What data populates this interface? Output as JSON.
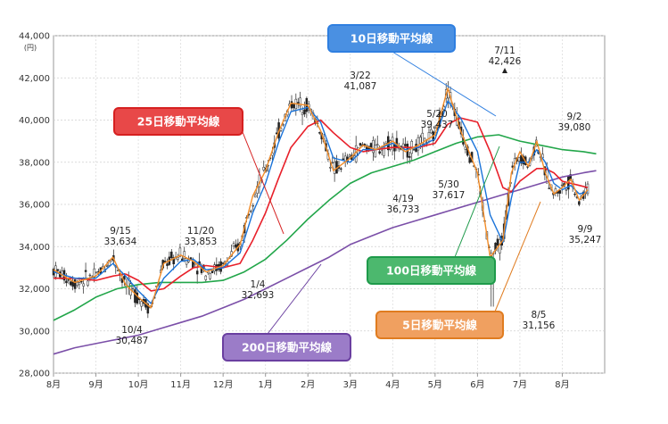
{
  "chart_data": {
    "type": "line",
    "title": "",
    "ylabel_unit": "(円)",
    "ylim": [
      28000,
      44000
    ],
    "y_ticks": [
      "28,000",
      "30,000",
      "32,000",
      "34,000",
      "36,000",
      "38,000",
      "40,000",
      "42,000",
      "44,000"
    ],
    "y_tick_values": [
      28000,
      30000,
      32000,
      34000,
      36000,
      38000,
      40000,
      42000,
      44000
    ],
    "x_labels": [
      "8月",
      "9月",
      "10月",
      "11月",
      "12月",
      "1月",
      "2月",
      "3月",
      "4月",
      "5月",
      "6月",
      "7月",
      "8月"
    ],
    "grid": true,
    "series": [
      {
        "name": "5日移動平均線",
        "color": "#f28c28",
        "x": [
          0,
          0.5,
          1,
          1.4,
          1.7,
          2,
          2.3,
          2.6,
          3,
          3.3,
          3.6,
          4,
          4.4,
          4.7,
          5,
          5.3,
          5.6,
          6,
          6.3,
          6.6,
          7,
          7.3,
          7.6,
          8,
          8.3,
          8.6,
          9,
          9.3,
          9.6,
          10,
          10.3,
          10.6,
          10.8,
          11,
          11.2,
          11.4,
          11.6,
          11.8,
          12,
          12.2,
          12.4,
          12.6
        ],
        "values": [
          32900,
          32300,
          32600,
          33500,
          32200,
          31600,
          31100,
          33200,
          33600,
          33300,
          32800,
          33100,
          34100,
          36400,
          37600,
          39400,
          40800,
          40700,
          39500,
          37600,
          38200,
          38800,
          38600,
          39000,
          38500,
          38800,
          39300,
          41500,
          39500,
          37500,
          33500,
          34300,
          37500,
          38500,
          37800,
          39000,
          37500,
          36500,
          36800,
          37200,
          36200,
          36700
        ]
      },
      {
        "name": "10日移動平均線",
        "color": "#1a73d9",
        "x": [
          0,
          0.5,
          1,
          1.4,
          1.7,
          2,
          2.3,
          2.6,
          3,
          3.3,
          3.6,
          4,
          4.4,
          4.7,
          5,
          5.3,
          5.6,
          6,
          6.3,
          6.6,
          7,
          7.3,
          7.6,
          8,
          8.3,
          8.6,
          9,
          9.3,
          9.6,
          10,
          10.3,
          10.6,
          10.8,
          11,
          11.2,
          11.4,
          11.6,
          11.8,
          12,
          12.2,
          12.4,
          12.6
        ],
        "values": [
          32800,
          32500,
          32500,
          33200,
          32600,
          31900,
          31300,
          32500,
          33300,
          33400,
          32900,
          33000,
          33700,
          35600,
          37000,
          38900,
          40400,
          40600,
          39900,
          38200,
          38000,
          38600,
          38600,
          38900,
          38600,
          38700,
          39100,
          40900,
          40100,
          38500,
          35500,
          34200,
          36300,
          38000,
          38000,
          38600,
          38000,
          37000,
          36700,
          36900,
          36500,
          36600
        ]
      },
      {
        "name": "25日移動平均線",
        "color": "#e8202a",
        "x": [
          0,
          0.5,
          1,
          1.4,
          1.7,
          2,
          2.3,
          2.6,
          3,
          3.3,
          3.6,
          4,
          4.4,
          4.7,
          5,
          5.3,
          5.6,
          6,
          6.3,
          6.6,
          7,
          7.3,
          7.6,
          8,
          8.3,
          8.6,
          9,
          9.3,
          9.6,
          10,
          10.3,
          10.6,
          10.8,
          11,
          11.2,
          11.4,
          11.6,
          11.8,
          12,
          12.2,
          12.4,
          12.6
        ],
        "values": [
          32500,
          32500,
          32400,
          32600,
          32700,
          32400,
          31900,
          32000,
          32600,
          33000,
          33100,
          33000,
          33200,
          34300,
          35600,
          37200,
          38700,
          39700,
          40000,
          39400,
          38700,
          38500,
          38600,
          38700,
          38700,
          38700,
          38900,
          39800,
          40100,
          39900,
          38500,
          36800,
          36600,
          37100,
          37400,
          37700,
          37700,
          37500,
          37100,
          37000,
          36900,
          36800
        ]
      },
      {
        "name": "100日移動平均線",
        "color": "#22a64a",
        "x": [
          0,
          0.5,
          1,
          1.5,
          2,
          2.5,
          3,
          3.5,
          4,
          4.5,
          5,
          5.5,
          6,
          6.5,
          7,
          7.5,
          8,
          8.5,
          9,
          9.5,
          10,
          10.5,
          11,
          11.5,
          12,
          12.5,
          12.8
        ],
        "values": [
          30500,
          31000,
          31600,
          32000,
          32200,
          32300,
          32300,
          32300,
          32400,
          32800,
          33400,
          34300,
          35300,
          36200,
          37000,
          37500,
          37800,
          38100,
          38500,
          38900,
          39200,
          39300,
          39000,
          38800,
          38600,
          38500,
          38400
        ]
      },
      {
        "name": "200日移動平均線",
        "color": "#7b4fa8",
        "x": [
          0,
          0.5,
          1,
          1.5,
          2,
          2.5,
          3,
          3.5,
          4,
          4.5,
          5,
          5.5,
          6,
          6.5,
          7,
          7.5,
          8,
          8.5,
          9,
          9.5,
          10,
          10.5,
          11,
          11.5,
          12,
          12.5,
          12.8
        ],
        "values": [
          28900,
          29200,
          29400,
          29600,
          29800,
          30100,
          30400,
          30700,
          31100,
          31500,
          32000,
          32500,
          33000,
          33500,
          34100,
          34500,
          34900,
          35200,
          35500,
          35800,
          36100,
          36400,
          36700,
          37000,
          37300,
          37500,
          37600
        ]
      }
    ],
    "annotations": [
      {
        "date": "9/15",
        "value": "33,634"
      },
      {
        "date": "10/4",
        "value": "30,487"
      },
      {
        "date": "11/20",
        "value": "33,853"
      },
      {
        "date": "1/4",
        "value": "32,693"
      },
      {
        "date": "3/22",
        "value": "41,087"
      },
      {
        "date": "4/19",
        "value": "36,733"
      },
      {
        "date": "5/20",
        "value": "39,437"
      },
      {
        "date": "5/30",
        "value": "37,617"
      },
      {
        "date": "7/11",
        "value": "42,426"
      },
      {
        "date": "8/5",
        "value": "31,156"
      },
      {
        "date": "9/2",
        "value": "39,080"
      },
      {
        "date": "9/9",
        "value": "35,247"
      }
    ],
    "legend_boxes": [
      {
        "label": "10日移動平均線",
        "border": "#2f7fe0",
        "fill": "#4a90e2",
        "text": "#ffffff"
      },
      {
        "label": "25日移動平均線",
        "border": "#d62020",
        "fill": "#e84848",
        "text": "#ffffff"
      },
      {
        "label": "100日移動平均線",
        "border": "#1e9a4a",
        "fill": "#4cb86e",
        "text": "#ffffff"
      },
      {
        "label": "5日移動平均線",
        "border": "#e07c20",
        "fill": "#f0a060",
        "text": "#ffffff"
      },
      {
        "label": "200日移動平均線",
        "border": "#6a3fa0",
        "fill": "#9b7cc8",
        "text": "#ffffff"
      }
    ]
  }
}
